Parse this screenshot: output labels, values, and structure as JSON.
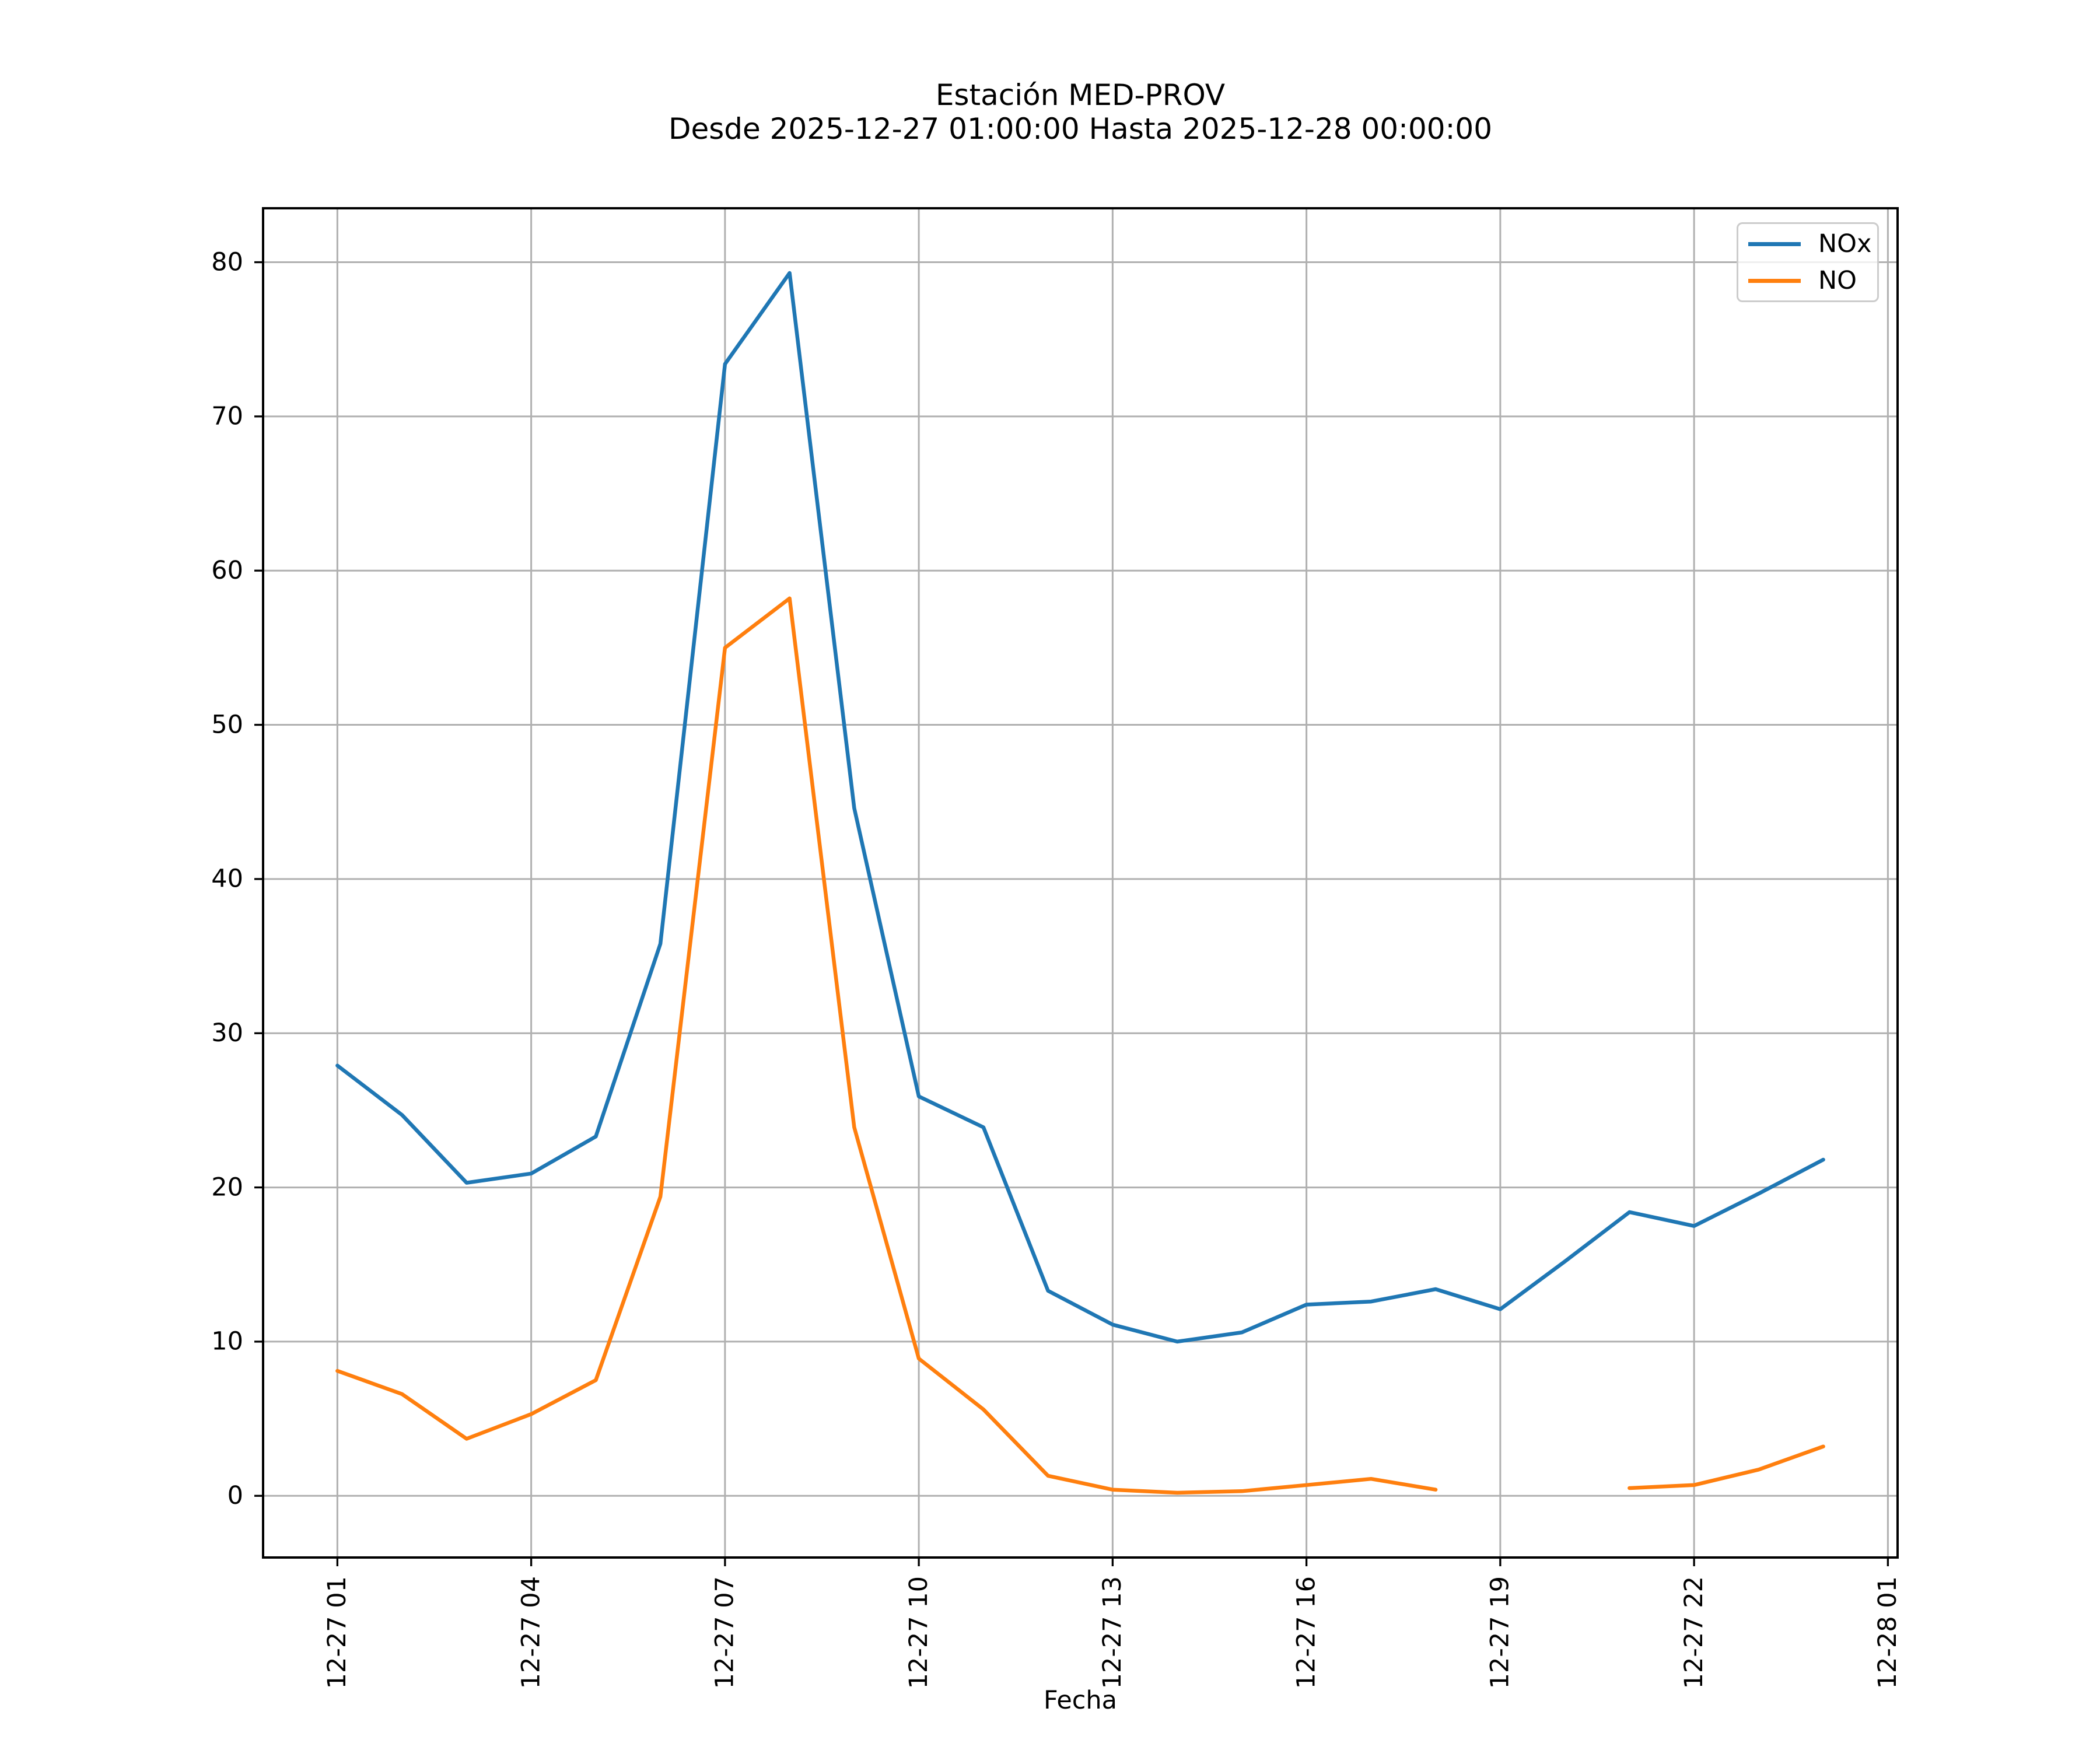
{
  "chart_data": {
    "type": "line",
    "title": "Estación MED-PROV",
    "subtitle": "Desde 2025-12-27 01:00:00 Hasta 2025-12-28 00:00:00",
    "xlabel": "Fecha",
    "ylabel": "",
    "x_hours": [
      1,
      2,
      3,
      4,
      5,
      6,
      7,
      8,
      9,
      10,
      11,
      12,
      13,
      14,
      15,
      16,
      17,
      18,
      19,
      20,
      21,
      22,
      23,
      24
    ],
    "series": [
      {
        "name": "NOx",
        "color": "#1f77b4",
        "values": [
          27.9,
          24.7,
          20.3,
          20.9,
          23.3,
          35.8,
          73.4,
          79.3,
          44.6,
          25.9,
          23.9,
          13.3,
          11.1,
          10.0,
          10.6,
          12.4,
          12.6,
          13.4,
          12.1,
          15.2,
          18.4,
          17.5,
          19.6,
          21.8
        ]
      },
      {
        "name": "NO",
        "color": "#ff7f0e",
        "values": [
          8.1,
          6.6,
          3.7,
          5.3,
          7.5,
          19.4,
          55.0,
          58.2,
          23.9,
          8.9,
          5.6,
          1.3,
          0.4,
          0.2,
          0.3,
          0.7,
          1.1,
          0.4,
          null,
          null,
          0.5,
          0.7,
          1.7,
          3.2
        ]
      }
    ],
    "xticks": [
      {
        "hour": 1,
        "label": "12-27 01"
      },
      {
        "hour": 4,
        "label": "12-27 04"
      },
      {
        "hour": 7,
        "label": "12-27 07"
      },
      {
        "hour": 10,
        "label": "12-27 10"
      },
      {
        "hour": 13,
        "label": "12-27 13"
      },
      {
        "hour": 16,
        "label": "12-27 16"
      },
      {
        "hour": 19,
        "label": "12-27 19"
      },
      {
        "hour": 22,
        "label": "12-27 22"
      },
      {
        "hour": 25,
        "label": "12-28 01"
      }
    ],
    "yticks": [
      0,
      10,
      20,
      30,
      40,
      50,
      60,
      70,
      80
    ],
    "xlim_hours": [
      -0.15,
      25.15
    ],
    "ylim": [
      -4.0,
      83.5
    ],
    "grid": true,
    "legend_position": "upper right",
    "grid_color": "#b0b0b0",
    "spine_color": "#000000",
    "tick_label_color": "#000000",
    "background": "#ffffff"
  }
}
